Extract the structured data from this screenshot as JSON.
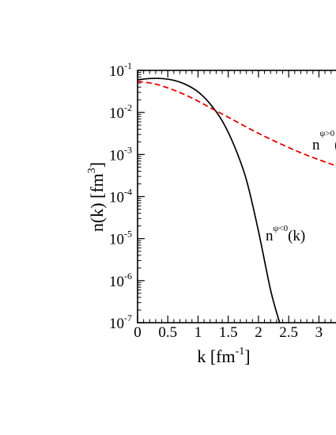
{
  "chart_data": {
    "type": "line",
    "xlabel": {
      "main": "k [fm",
      "sup": "-1",
      "tail": "]"
    },
    "ylabel": {
      "main": "n(k) [fm",
      "sup": "3",
      "tail": "]"
    },
    "xlim": [
      0,
      3.4
    ],
    "ylim": [
      1e-07,
      0.1
    ],
    "yscale": "log",
    "grid": false,
    "x_ticks": [
      {
        "value": 0,
        "label": "0"
      },
      {
        "value": 0.5,
        "label": "0.5"
      },
      {
        "value": 1,
        "label": "1"
      },
      {
        "value": 1.5,
        "label": "1.5"
      },
      {
        "value": 2,
        "label": "2"
      },
      {
        "value": 2.5,
        "label": "2.5"
      },
      {
        "value": 3,
        "label": "3"
      }
    ],
    "y_ticks": [
      {
        "value": 0.1,
        "base": "10",
        "exp": "-1"
      },
      {
        "value": 0.01,
        "base": "10",
        "exp": "-2"
      },
      {
        "value": 0.001,
        "base": "10",
        "exp": "-3"
      },
      {
        "value": 0.0001,
        "base": "10",
        "exp": "-4"
      },
      {
        "value": 1e-05,
        "base": "10",
        "exp": "-5"
      },
      {
        "value": 1e-06,
        "base": "10",
        "exp": "-6"
      },
      {
        "value": 1e-07,
        "base": "10",
        "exp": "-7"
      }
    ],
    "series": [
      {
        "label": {
          "base": "n",
          "sup": "ψ<0",
          "tail": "(k)"
        },
        "color": "#000000",
        "style": "solid",
        "x": [
          0,
          0.2,
          0.4,
          0.6,
          0.8,
          1.0,
          1.2,
          1.4,
          1.6,
          1.8,
          2.0,
          2.2,
          2.35
        ],
        "y": [
          0.06,
          0.064,
          0.064,
          0.058,
          0.046,
          0.031,
          0.016,
          0.0063,
          0.0016,
          0.00025,
          1.5e-05,
          6e-07,
          1e-07
        ]
      },
      {
        "label": {
          "base": "n",
          "sup": "ψ>0",
          "tail": "("
        },
        "color": "#e60000",
        "style": "dashed",
        "x": [
          0,
          0.3,
          0.6,
          0.9,
          1.2,
          1.5,
          1.8,
          2.1,
          2.4,
          2.7,
          3.0,
          3.3,
          3.4
        ],
        "y": [
          0.055,
          0.047,
          0.034,
          0.022,
          0.013,
          0.0077,
          0.0045,
          0.0027,
          0.0017,
          0.0011,
          0.00075,
          0.00053,
          0.00048
        ]
      }
    ]
  }
}
